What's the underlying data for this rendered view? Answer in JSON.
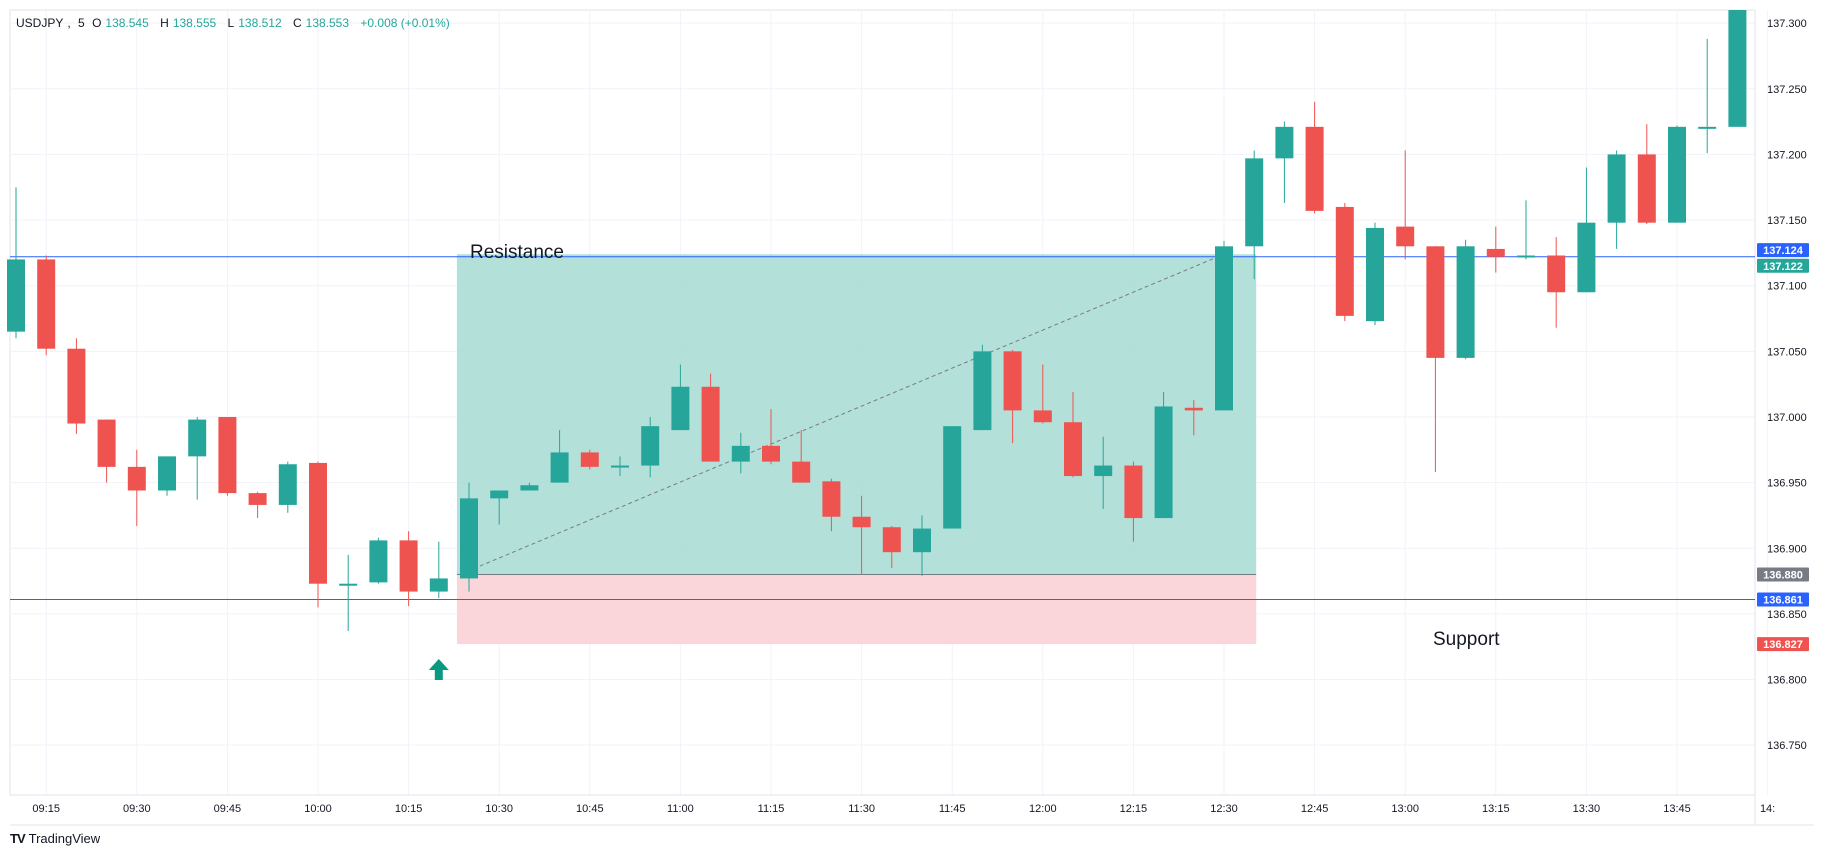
{
  "header": {
    "symbol": "USDJPY",
    "interval": "5",
    "open_label": "O",
    "open": "138.545",
    "high_label": "H",
    "high": "138.555",
    "low_label": "L",
    "low": "138.512",
    "close_label": "C",
    "close": "138.553",
    "change": "+0.008 (+0.01%)"
  },
  "branding": {
    "name": "TradingView",
    "icon": "tradingview-logo-icon"
  },
  "colors": {
    "up": "#26a69a",
    "down": "#ef5350",
    "hline": "#2962ff",
    "profit_zone": "#a7dbd3",
    "loss_zone": "#fad4d8",
    "grid": "#f0f3fa"
  },
  "chart_data": {
    "type": "candlestick",
    "timeframe_minutes": 5,
    "ylim": [
      136.725,
      137.31
    ],
    "grid": true,
    "x_ticks": [
      "09:15",
      "09:30",
      "09:45",
      "10:00",
      "10:15",
      "10:30",
      "10:45",
      "11:00",
      "11:15",
      "11:30",
      "11:45",
      "12:00",
      "12:15",
      "12:30",
      "12:45",
      "13:00",
      "13:15",
      "13:30",
      "13:45",
      "14:"
    ],
    "y_ticks": [
      "137.300",
      "137.250",
      "137.200",
      "137.150",
      "137.100",
      "137.050",
      "137.000",
      "136.950",
      "136.900",
      "136.850",
      "136.800",
      "136.750"
    ],
    "candles": [
      {
        "t": "09:10",
        "o": 137.065,
        "h": 137.175,
        "l": 137.06,
        "c": 137.12
      },
      {
        "t": "09:15",
        "o": 137.12,
        "h": 137.123,
        "l": 137.047,
        "c": 137.052
      },
      {
        "t": "09:20",
        "o": 137.052,
        "h": 137.06,
        "l": 136.987,
        "c": 136.995
      },
      {
        "t": "09:25",
        "o": 136.998,
        "h": 136.998,
        "l": 136.95,
        "c": 136.962
      },
      {
        "t": "09:30",
        "o": 136.962,
        "h": 136.975,
        "l": 136.917,
        "c": 136.944
      },
      {
        "t": "09:35",
        "o": 136.944,
        "h": 136.97,
        "l": 136.94,
        "c": 136.97
      },
      {
        "t": "09:40",
        "o": 136.97,
        "h": 137.0,
        "l": 136.937,
        "c": 136.998
      },
      {
        "t": "09:45",
        "o": 137.0,
        "h": 137.0,
        "l": 136.94,
        "c": 136.942
      },
      {
        "t": "09:50",
        "o": 136.942,
        "h": 136.943,
        "l": 136.923,
        "c": 136.933
      },
      {
        "t": "09:55",
        "o": 136.933,
        "h": 136.966,
        "l": 136.927,
        "c": 136.964
      },
      {
        "t": "10:00",
        "o": 136.965,
        "h": 136.966,
        "l": 136.855,
        "c": 136.873
      },
      {
        "t": "10:05",
        "o": 136.873,
        "h": 136.895,
        "l": 136.837,
        "c": 136.873
      },
      {
        "t": "10:10",
        "o": 136.874,
        "h": 136.908,
        "l": 136.873,
        "c": 136.906
      },
      {
        "t": "10:15",
        "o": 136.906,
        "h": 136.913,
        "l": 136.856,
        "c": 136.867
      },
      {
        "t": "10:20",
        "o": 136.867,
        "h": 136.905,
        "l": 136.862,
        "c": 136.877
      },
      {
        "t": "10:25",
        "o": 136.877,
        "h": 136.95,
        "l": 136.867,
        "c": 136.938
      },
      {
        "t": "10:30",
        "o": 136.938,
        "h": 136.944,
        "l": 136.918,
        "c": 136.944
      },
      {
        "t": "10:35",
        "o": 136.944,
        "h": 136.95,
        "l": 136.944,
        "c": 136.948
      },
      {
        "t": "10:40",
        "o": 136.95,
        "h": 136.99,
        "l": 136.95,
        "c": 136.973
      },
      {
        "t": "10:45",
        "o": 136.973,
        "h": 136.975,
        "l": 136.96,
        "c": 136.962
      },
      {
        "t": "10:50",
        "o": 136.963,
        "h": 136.97,
        "l": 136.955,
        "c": 136.963
      },
      {
        "t": "10:55",
        "o": 136.963,
        "h": 137.0,
        "l": 136.954,
        "c": 136.993
      },
      {
        "t": "11:00",
        "o": 136.99,
        "h": 137.04,
        "l": 136.99,
        "c": 137.023
      },
      {
        "t": "11:05",
        "o": 137.023,
        "h": 137.033,
        "l": 136.966,
        "c": 136.966
      },
      {
        "t": "11:10",
        "o": 136.966,
        "h": 136.988,
        "l": 136.957,
        "c": 136.978
      },
      {
        "t": "11:15",
        "o": 136.978,
        "h": 137.006,
        "l": 136.964,
        "c": 136.966
      },
      {
        "t": "11:20",
        "o": 136.966,
        "h": 136.99,
        "l": 136.95,
        "c": 136.95
      },
      {
        "t": "11:25",
        "o": 136.951,
        "h": 136.953,
        "l": 136.913,
        "c": 136.924
      },
      {
        "t": "11:30",
        "o": 136.924,
        "h": 136.94,
        "l": 136.88,
        "c": 136.916
      },
      {
        "t": "11:35",
        "o": 136.916,
        "h": 136.917,
        "l": 136.885,
        "c": 136.897
      },
      {
        "t": "11:40",
        "o": 136.897,
        "h": 136.925,
        "l": 136.879,
        "c": 136.915
      },
      {
        "t": "11:45",
        "o": 136.915,
        "h": 136.993,
        "l": 136.915,
        "c": 136.993
      },
      {
        "t": "11:50",
        "o": 136.99,
        "h": 137.055,
        "l": 136.99,
        "c": 137.05
      },
      {
        "t": "11:55",
        "o": 137.05,
        "h": 137.051,
        "l": 136.98,
        "c": 137.005
      },
      {
        "t": "12:00",
        "o": 137.005,
        "h": 137.04,
        "l": 136.995,
        "c": 136.996
      },
      {
        "t": "12:05",
        "o": 136.996,
        "h": 137.019,
        "l": 136.954,
        "c": 136.955
      },
      {
        "t": "12:10",
        "o": 136.955,
        "h": 136.985,
        "l": 136.93,
        "c": 136.963
      },
      {
        "t": "12:15",
        "o": 136.963,
        "h": 136.966,
        "l": 136.905,
        "c": 136.923
      },
      {
        "t": "12:20",
        "o": 136.923,
        "h": 137.019,
        "l": 136.923,
        "c": 137.008
      },
      {
        "t": "12:25",
        "o": 137.007,
        "h": 137.013,
        "l": 136.986,
        "c": 137.005
      },
      {
        "t": "12:30",
        "o": 137.005,
        "h": 137.134,
        "l": 137.005,
        "c": 137.13
      },
      {
        "t": "12:35",
        "o": 137.13,
        "h": 137.203,
        "l": 137.105,
        "c": 137.197
      },
      {
        "t": "12:40",
        "o": 137.197,
        "h": 137.225,
        "l": 137.163,
        "c": 137.221
      },
      {
        "t": "12:45",
        "o": 137.221,
        "h": 137.24,
        "l": 137.155,
        "c": 137.157
      },
      {
        "t": "12:50",
        "o": 137.16,
        "h": 137.163,
        "l": 137.073,
        "c": 137.077
      },
      {
        "t": "12:55",
        "o": 137.073,
        "h": 137.148,
        "l": 137.07,
        "c": 137.144
      },
      {
        "t": "13:00",
        "o": 137.145,
        "h": 137.203,
        "l": 137.12,
        "c": 137.13
      },
      {
        "t": "13:05",
        "o": 137.13,
        "h": 137.13,
        "l": 136.958,
        "c": 137.045
      },
      {
        "t": "13:10",
        "o": 137.045,
        "h": 137.135,
        "l": 137.044,
        "c": 137.13
      },
      {
        "t": "13:15",
        "o": 137.128,
        "h": 137.145,
        "l": 137.11,
        "c": 137.122
      },
      {
        "t": "13:20",
        "o": 137.122,
        "h": 137.165,
        "l": 137.12,
        "c": 137.123
      },
      {
        "t": "13:25",
        "o": 137.123,
        "h": 137.137,
        "l": 137.068,
        "c": 137.095
      },
      {
        "t": "13:30",
        "o": 137.095,
        "h": 137.19,
        "l": 137.095,
        "c": 137.148
      },
      {
        "t": "13:35",
        "o": 137.148,
        "h": 137.203,
        "l": 137.128,
        "c": 137.2
      },
      {
        "t": "13:40",
        "o": 137.2,
        "h": 137.223,
        "l": 137.147,
        "c": 137.148
      },
      {
        "t": "13:45",
        "o": 137.148,
        "h": 137.222,
        "l": 137.148,
        "c": 137.221
      },
      {
        "t": "13:50",
        "o": 137.22,
        "h": 137.288,
        "l": 137.201,
        "c": 137.221
      },
      {
        "t": "13:55",
        "o": 137.221,
        "h": 137.31,
        "l": 137.221,
        "c": 137.31
      }
    ],
    "horizontal_lines": [
      {
        "name": "Resistance",
        "price": 137.122
      },
      {
        "name": "Support",
        "price": 136.861
      }
    ],
    "position": {
      "direction": "long",
      "entry": 136.88,
      "target": 137.124,
      "stop": 136.827,
      "start_time": "10:25",
      "end_time": "12:35"
    },
    "price_labels": [
      {
        "value": "137.124",
        "kind": "target"
      },
      {
        "value": "137.122",
        "kind": "resistance"
      },
      {
        "value": "136.880",
        "kind": "entry"
      },
      {
        "value": "136.861",
        "kind": "support"
      },
      {
        "value": "136.827",
        "kind": "stop"
      }
    ],
    "annotations": [
      {
        "text": "Resistance",
        "anchor_time": "10:25",
        "price": 137.122,
        "placement": "above"
      },
      {
        "text": "Support",
        "anchor_time": "13:05",
        "price": 136.861,
        "placement": "below"
      }
    ],
    "markers": [
      {
        "type": "up-arrow",
        "time": "10:20",
        "icon": "up-arrow-icon"
      }
    ]
  }
}
